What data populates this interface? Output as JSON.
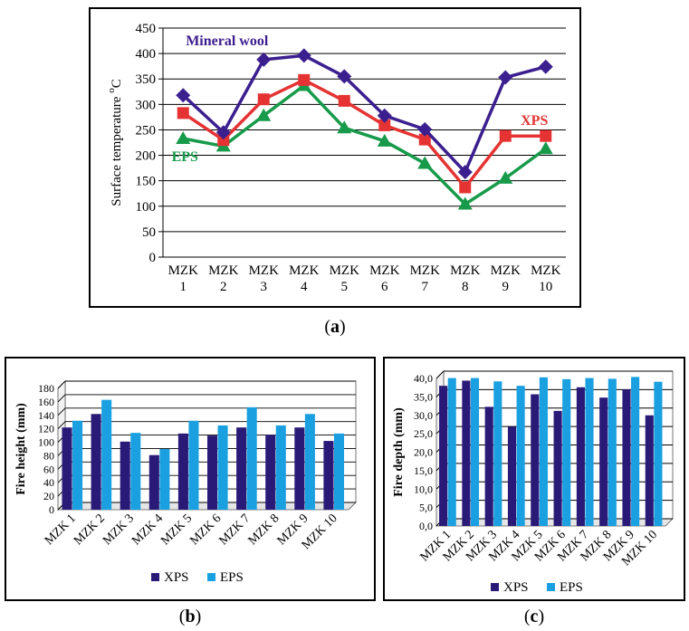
{
  "captions": {
    "a": "a",
    "b": "b",
    "c": "c"
  },
  "chart_data": [
    {
      "id": "a",
      "type": "line",
      "title": "",
      "ylabel": "Surface temperature °C",
      "ylim": [
        0,
        450
      ],
      "yticks": [
        0,
        50,
        100,
        150,
        200,
        250,
        300,
        350,
        400,
        450
      ],
      "grid": true,
      "categories": [
        "MZK 1",
        "MZK 2",
        "MZK 3",
        "MZK 4",
        "MZK 5",
        "MZK 6",
        "MZK 7",
        "MZK 8",
        "MZK 9",
        "MZK 10"
      ],
      "category_lines": [
        [
          "MZK",
          "1"
        ],
        [
          "MZK",
          "2"
        ],
        [
          "MZK",
          "3"
        ],
        [
          "MZK",
          "4"
        ],
        [
          "MZK",
          "5"
        ],
        [
          "MZK",
          "6"
        ],
        [
          "MZK",
          "7"
        ],
        [
          "MZK",
          "8"
        ],
        [
          "MZK",
          "9"
        ],
        [
          "MZK",
          "10"
        ]
      ],
      "series": [
        {
          "name": "Mineral wool",
          "color": "#3c1f8f",
          "marker": "diamond",
          "values": [
            318,
            245,
            388,
            396,
            355,
            278,
            251,
            167,
            353,
            374
          ]
        },
        {
          "name": "XPS",
          "color": "#e53333",
          "marker": "square",
          "values": [
            283,
            230,
            310,
            348,
            307,
            259,
            231,
            137,
            238,
            238
          ]
        },
        {
          "name": "EPS",
          "color": "#179a4a",
          "marker": "triangle",
          "values": [
            233,
            218,
            278,
            337,
            254,
            228,
            184,
            104,
            155,
            213
          ]
        }
      ]
    },
    {
      "id": "b",
      "type": "bar",
      "title": "",
      "ylabel": "Fire height (mm)",
      "ylim": [
        0,
        180
      ],
      "yticks": [
        0,
        20,
        40,
        60,
        80,
        100,
        120,
        140,
        160,
        180
      ],
      "grid": true,
      "legend": "bottom",
      "categories": [
        "MZK 1",
        "MZK 2",
        "MZK 3",
        "MZK 4",
        "MZK 5",
        "MZK 6",
        "MZK 7",
        "MZK 8",
        "MZK 9",
        "MZK 10"
      ],
      "series": [
        {
          "name": "XPS",
          "color": "#2a1a78",
          "values": [
            122,
            142,
            101,
            81,
            113,
            110,
            122,
            111,
            122,
            102
          ]
        },
        {
          "name": "EPS",
          "color": "#1aa0e0",
          "values": [
            132,
            163,
            114,
            90,
            132,
            125,
            152,
            125,
            142,
            113
          ]
        }
      ]
    },
    {
      "id": "c",
      "type": "bar",
      "title": "",
      "ylabel": "Fire depth (mm)",
      "ylim": [
        0,
        40
      ],
      "yticks": [
        "0,0",
        "5,0",
        "10,0",
        "15,0",
        "20,0",
        "25,0",
        "30,0",
        "35,0",
        "40,0"
      ],
      "grid": true,
      "legend": "bottom",
      "categories": [
        "MZK 1",
        "MZK 2",
        "MZK 3",
        "MZK 4",
        "MZK 5",
        "MZK 6",
        "MZK 7",
        "MZK 8",
        "MZK 9",
        "MZK 10"
      ],
      "series": [
        {
          "name": "XPS",
          "color": "#2a1a78",
          "values": [
            38.0,
            39.4,
            32.3,
            26.9,
            35.7,
            31.2,
            37.6,
            34.8,
            37.0,
            30.0
          ]
        },
        {
          "name": "EPS",
          "color": "#1aa0e0",
          "values": [
            40.1,
            40.1,
            39.2,
            38.0,
            40.3,
            39.8,
            40.1,
            39.9,
            40.4,
            39.1
          ]
        }
      ]
    }
  ]
}
